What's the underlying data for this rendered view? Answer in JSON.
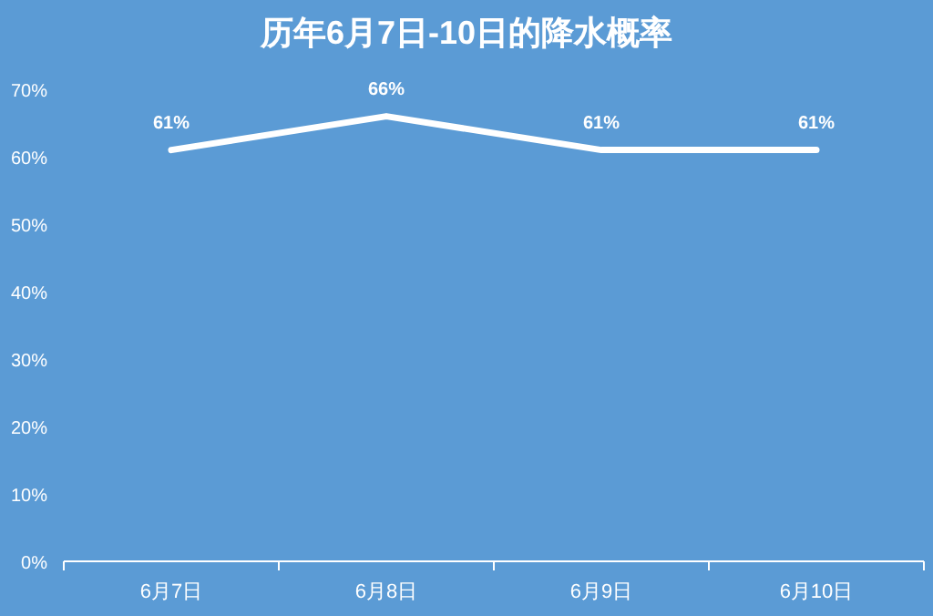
{
  "chart_data": {
    "type": "line",
    "title": "历年6月7日-10日的降水概率",
    "categories": [
      "6月7日",
      "6月8日",
      "6月9日",
      "6月10日"
    ],
    "series": [
      {
        "color": "#ffffff",
        "values": [
          61,
          66,
          61,
          61
        ],
        "value_labels": [
          "61%",
          "66%",
          "61%",
          "61%"
        ]
      }
    ],
    "ylim": [
      0,
      70
    ],
    "yticks": [
      {
        "value": 0,
        "label": "0%"
      },
      {
        "value": 10,
        "label": "10%"
      },
      {
        "value": 20,
        "label": "20%"
      },
      {
        "value": 30,
        "label": "30%"
      },
      {
        "value": 40,
        "label": "40%"
      },
      {
        "value": 50,
        "label": "50%"
      },
      {
        "value": 60,
        "label": "60%"
      },
      {
        "value": 70,
        "label": "70%"
      }
    ],
    "grid": false,
    "marker": "none",
    "line_style": "solid"
  }
}
